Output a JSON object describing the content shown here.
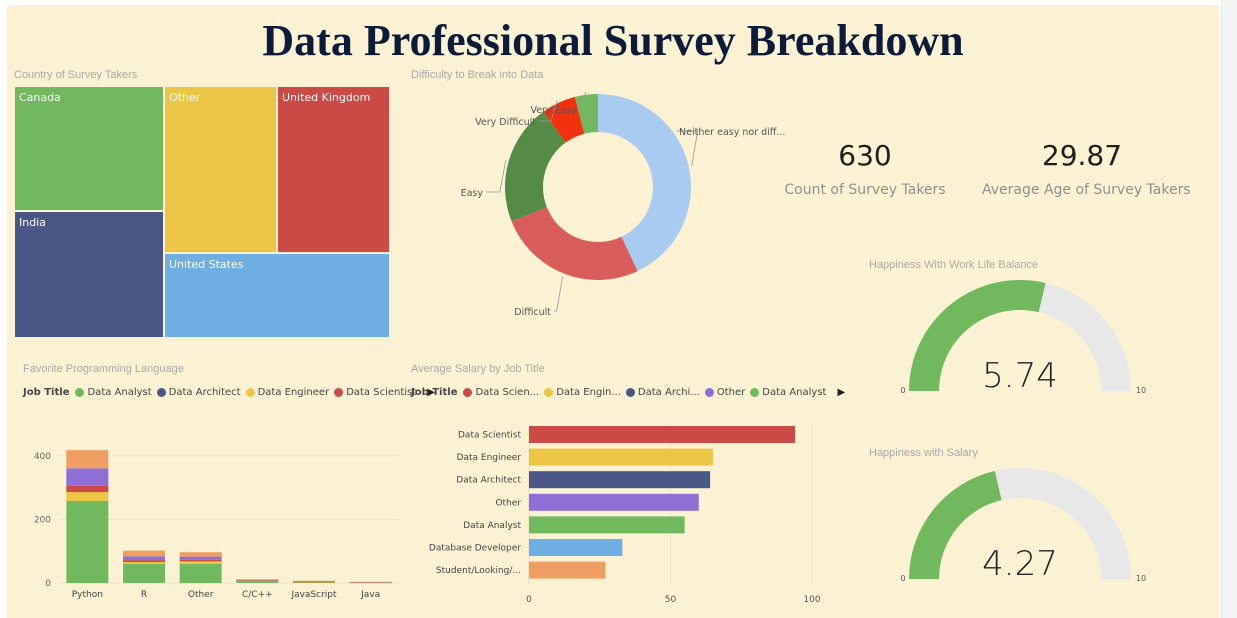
{
  "dashboard": {
    "title": "Data Professional Survey Breakdown"
  },
  "visuals": {
    "country_title": "Country of Survey Takers",
    "difficulty_title": "Difficulty to Break into Data",
    "language_title": "Favorite Programming Language",
    "salary_title": "Average Salary by Job Title",
    "worklife_title": "Happiness With Work Life Balance",
    "salary_happiness_title": "Happiness with Salary"
  },
  "kpis": {
    "count": {
      "value": "630",
      "label": "Count of Survey Takers"
    },
    "age": {
      "value": "29.87",
      "label": "Average Age of Survey Takers"
    }
  },
  "chart_data": [
    {
      "id": "country",
      "type": "treemap",
      "tiles": [
        {
          "label": "Canada",
          "color": "#72b85e"
        },
        {
          "label": "Other",
          "color": "#ecc646"
        },
        {
          "label": "United Kingdom",
          "color": "#cc4a45"
        },
        {
          "label": "India",
          "color": "#4a5685"
        },
        {
          "label": "United States",
          "color": "#6eaee2"
        }
      ]
    },
    {
      "id": "difficulty",
      "type": "pie",
      "donut": true,
      "slices": [
        {
          "label": "Neither easy nor diff...",
          "value": 43,
          "color": "#a8cbef"
        },
        {
          "label": "Difficult",
          "value": 26,
          "color": "#d95d5b"
        },
        {
          "label": "Easy",
          "value": 21,
          "color": "#558b47"
        },
        {
          "label": "Very Difficult",
          "value": 6,
          "color": "#f2320f"
        },
        {
          "label": "Very Easy",
          "value": 4,
          "color": "#72b85e"
        }
      ]
    },
    {
      "id": "language",
      "type": "bar",
      "stacked": true,
      "legend_title": "Job Title",
      "legend": [
        {
          "name": "Data Analyst",
          "color": "#72b85e"
        },
        {
          "name": "Data Architect",
          "color": "#4a5685"
        },
        {
          "name": "Data Engineer",
          "color": "#ecc646"
        },
        {
          "name": "Data Scientist",
          "color": "#cc4a45"
        }
      ],
      "categories": [
        "Python",
        "R",
        "Other",
        "C/C++",
        "JavaScript",
        "Java"
      ],
      "series": [
        {
          "name": "Data Analyst",
          "color": "#72b85e",
          "values": [
            258,
            60,
            60,
            8,
            3,
            2
          ]
        },
        {
          "name": "Data Engineer",
          "color": "#ecc646",
          "values": [
            28,
            6,
            8,
            1,
            1,
            0
          ]
        },
        {
          "name": "Data Scientist",
          "color": "#cc4a45",
          "values": [
            20,
            6,
            5,
            1,
            1,
            0
          ]
        },
        {
          "name": "Other",
          "color": "#8f6ed5",
          "values": [
            55,
            12,
            10,
            1,
            1,
            1
          ]
        },
        {
          "name": "Other",
          "color": "#ef9e63",
          "values": [
            57,
            18,
            14,
            1,
            1,
            1
          ]
        }
      ],
      "yticks": [
        0,
        200,
        400
      ],
      "ylim": [
        0,
        450
      ]
    },
    {
      "id": "salary",
      "type": "bar",
      "orientation": "horizontal",
      "legend_title": "Job Title",
      "legend": [
        {
          "name": "Data Scien...",
          "color": "#cc4a45"
        },
        {
          "name": "Data Engin...",
          "color": "#ecc646"
        },
        {
          "name": "Data Archi...",
          "color": "#4a5685"
        },
        {
          "name": "Other",
          "color": "#8f6ed5"
        },
        {
          "name": "Data Analyst",
          "color": "#72b85e"
        }
      ],
      "categories": [
        "Data Scientist",
        "Data Engineer",
        "Data Architect",
        "Other",
        "Data Analyst",
        "Database Developer",
        "Student/Looking/..."
      ],
      "colors": [
        "#cc4a45",
        "#ecc646",
        "#4a5685",
        "#8f6ed5",
        "#72b85e",
        "#6eaee2",
        "#ef9e63"
      ],
      "values": [
        94,
        65,
        64,
        60,
        55,
        33,
        27
      ],
      "xticks": [
        0,
        50,
        100
      ],
      "xlim": [
        0,
        100
      ]
    },
    {
      "id": "worklife",
      "type": "gauge",
      "value": 5.74,
      "value_label": "5.74",
      "min": 0,
      "max": 10,
      "min_label": "0",
      "max_label": "10",
      "fill_color": "#72b85e",
      "track_color": "#e8e8e8"
    },
    {
      "id": "salary_happiness",
      "type": "gauge",
      "value": 4.27,
      "value_label": "4.27",
      "min": 0,
      "max": 10,
      "min_label": "0",
      "max_label": "10",
      "fill_color": "#72b85e",
      "track_color": "#e8e8e8"
    }
  ]
}
